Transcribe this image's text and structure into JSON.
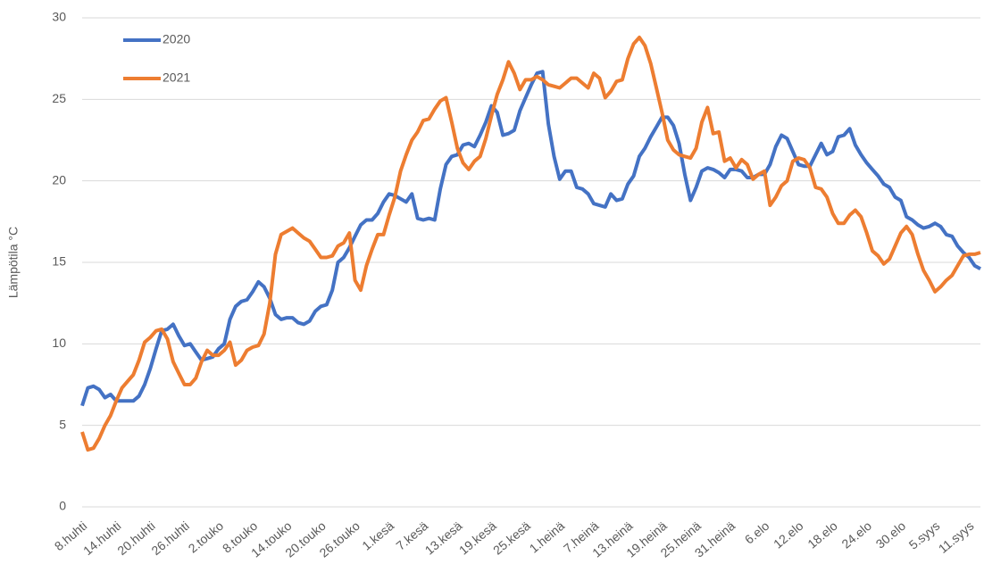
{
  "chart_data": {
    "type": "line",
    "y_label": "Lämpötila °C",
    "categories": [
      "8.huhti",
      null,
      null,
      null,
      null,
      null,
      "14.huhti",
      null,
      null,
      null,
      null,
      null,
      "20.huhti",
      null,
      null,
      null,
      null,
      null,
      "26.huhti",
      null,
      null,
      null,
      null,
      null,
      "2.touko",
      null,
      null,
      null,
      null,
      null,
      "8.touko",
      null,
      null,
      null,
      null,
      null,
      "14.touko",
      null,
      null,
      null,
      null,
      null,
      "20.touko",
      null,
      null,
      null,
      null,
      null,
      "26.touko",
      null,
      null,
      null,
      null,
      null,
      "1.kesä",
      null,
      null,
      null,
      null,
      null,
      "7.kesä",
      null,
      null,
      null,
      null,
      null,
      "13.kesä",
      null,
      null,
      null,
      null,
      null,
      "19.kesä",
      null,
      null,
      null,
      null,
      null,
      "25.kesä",
      null,
      null,
      null,
      null,
      null,
      "1.heinä",
      null,
      null,
      null,
      null,
      null,
      "7.heinä",
      null,
      null,
      null,
      null,
      null,
      "13.heinä",
      null,
      null,
      null,
      null,
      null,
      "19.heinä",
      null,
      null,
      null,
      null,
      null,
      "25.heinä",
      null,
      null,
      null,
      null,
      null,
      "31.heinä",
      null,
      null,
      null,
      null,
      null,
      "6.elo",
      null,
      null,
      null,
      null,
      null,
      "12.elo",
      null,
      null,
      null,
      null,
      null,
      "18.elo",
      null,
      null,
      null,
      null,
      null,
      "24.elo",
      null,
      null,
      null,
      null,
      null,
      "30.elo",
      null,
      null,
      null,
      null,
      null,
      "5.syys",
      null,
      null,
      null,
      null,
      null,
      "11.syys",
      null,
      null
    ],
    "series": [
      {
        "name": "2020",
        "color": "#4472c4",
        "values": [
          6.2,
          7.3,
          7.4,
          7.2,
          6.7,
          6.9,
          6.5,
          6.5,
          6.5,
          6.5,
          6.8,
          7.5,
          8.5,
          9.7,
          10.8,
          10.9,
          11.2,
          10.5,
          9.9,
          10.0,
          9.5,
          9.0,
          9.1,
          9.2,
          9.7,
          10.0,
          11.5,
          12.3,
          12.6,
          12.7,
          13.2,
          13.8,
          13.5,
          12.8,
          11.8,
          11.5,
          11.6,
          11.6,
          11.3,
          11.2,
          11.4,
          12.0,
          12.3,
          12.4,
          13.3,
          15.0,
          15.3,
          15.9,
          16.6,
          17.3,
          17.6,
          17.6,
          18.0,
          18.7,
          19.2,
          19.1,
          18.9,
          18.7,
          19.2,
          17.7,
          17.6,
          17.7,
          17.6,
          19.5,
          21.0,
          21.5,
          21.6,
          22.2,
          22.3,
          22.1,
          22.8,
          23.6,
          24.6,
          24.2,
          22.8,
          22.9,
          23.1,
          24.3,
          25.1,
          25.9,
          26.6,
          26.7,
          23.5,
          21.5,
          20.1,
          20.6,
          20.6,
          19.6,
          19.5,
          19.2,
          18.6,
          18.5,
          18.4,
          19.2,
          18.8,
          18.9,
          19.8,
          20.3,
          21.5,
          22.0,
          22.7,
          23.3,
          23.9,
          23.9,
          23.4,
          22.3,
          20.4,
          18.8,
          19.6,
          20.6,
          20.8,
          20.7,
          20.5,
          20.2,
          20.7,
          20.7,
          20.6,
          20.2,
          20.2,
          20.4,
          20.4,
          21.0,
          22.1,
          22.8,
          22.6,
          21.8,
          21.0,
          20.9,
          20.9,
          21.6,
          22.3,
          21.6,
          21.8,
          22.7,
          22.8,
          23.2,
          22.2,
          21.6,
          21.1,
          20.7,
          20.3,
          19.8,
          19.6,
          19.0,
          18.8,
          17.8,
          17.6,
          17.3,
          17.1,
          17.2,
          17.4,
          17.2,
          16.7,
          16.6,
          16.0,
          15.6,
          15.3,
          14.8,
          14.6
        ]
      },
      {
        "name": "2021",
        "color": "#ed7d31",
        "values": [
          4.6,
          3.5,
          3.6,
          4.2,
          5.0,
          5.6,
          6.5,
          7.3,
          7.7,
          8.1,
          9.0,
          10.1,
          10.4,
          10.8,
          10.9,
          10.3,
          8.9,
          8.2,
          7.5,
          7.5,
          7.9,
          8.9,
          9.6,
          9.3,
          9.3,
          9.6,
          10.1,
          8.7,
          9.0,
          9.6,
          9.8,
          9.9,
          10.6,
          12.5,
          15.5,
          16.7,
          16.9,
          17.1,
          16.8,
          16.5,
          16.3,
          15.8,
          15.3,
          15.3,
          15.4,
          16.0,
          16.2,
          16.8,
          13.9,
          13.3,
          14.8,
          15.8,
          16.7,
          16.7,
          17.9,
          19.0,
          20.6,
          21.6,
          22.5,
          23.0,
          23.7,
          23.8,
          24.4,
          24.9,
          25.1,
          23.6,
          22.0,
          21.1,
          20.7,
          21.2,
          21.5,
          22.6,
          24.0,
          25.3,
          26.2,
          27.3,
          26.6,
          25.6,
          26.2,
          26.2,
          26.4,
          26.2,
          25.9,
          25.8,
          25.7,
          26.0,
          26.3,
          26.3,
          26.0,
          25.7,
          26.6,
          26.3,
          25.1,
          25.5,
          26.1,
          26.2,
          27.5,
          28.4,
          28.8,
          28.3,
          27.2,
          25.7,
          24.2,
          22.5,
          21.9,
          21.6,
          21.5,
          21.4,
          22.0,
          23.6,
          24.5,
          22.9,
          23.0,
          21.2,
          21.4,
          20.8,
          21.3,
          21.0,
          20.1,
          20.4,
          20.6,
          18.5,
          19.0,
          19.7,
          20.0,
          21.2,
          21.4,
          21.3,
          20.8,
          19.6,
          19.5,
          19.0,
          18.0,
          17.4,
          17.4,
          17.9,
          18.2,
          17.8,
          16.8,
          15.7,
          15.4,
          14.9,
          15.2,
          16.0,
          16.8,
          17.2,
          16.7,
          15.5,
          14.5,
          13.9,
          13.2,
          13.5,
          13.9,
          14.2,
          14.8,
          15.4,
          15.5,
          15.5,
          15.6
        ]
      }
    ],
    "ylim": [
      0,
      30
    ],
    "yticks": [
      0,
      5,
      10,
      15,
      20,
      25,
      30
    ],
    "grid": true,
    "legend": "top-left"
  }
}
